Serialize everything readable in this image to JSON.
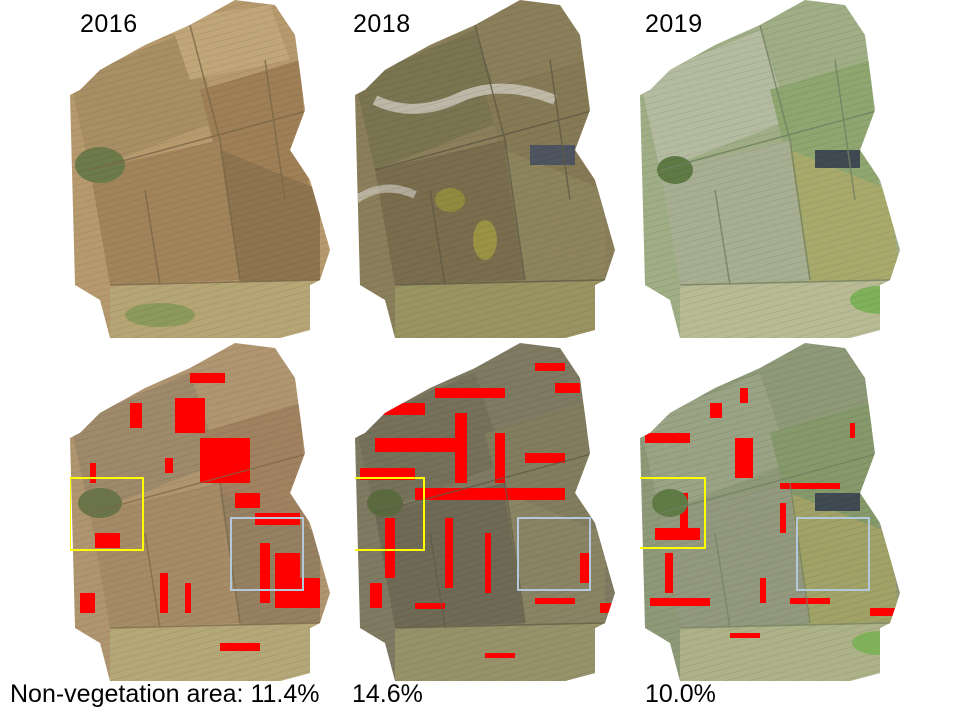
{
  "years": [
    "2016",
    "2018",
    "2019"
  ],
  "stats": {
    "label": "Non-vegetation area:",
    "values": [
      "11.4%",
      "14.6%",
      "10.0%"
    ]
  },
  "colors": {
    "nonvegetation_mask": "#ff0000",
    "highlight_box_1": "#ffff00",
    "highlight_box_2": "#b4c8dc",
    "field_2016": "#b69a6e",
    "field_2018": "#8a7f5a",
    "field_2019": "#9fae85"
  }
}
